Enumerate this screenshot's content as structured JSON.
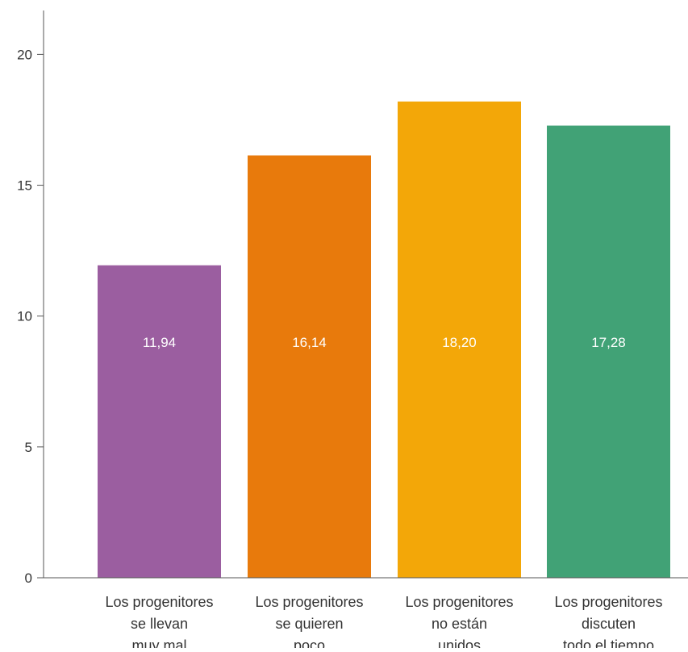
{
  "chart_data": {
    "type": "bar",
    "title": "",
    "xlabel": "",
    "ylabel": "",
    "ylim": [
      0,
      22
    ],
    "yticks": [
      0,
      5,
      10,
      15,
      20
    ],
    "grid": false,
    "legend": "none",
    "categories": [
      [
        "Los progenitores",
        "se llevan",
        "muy mal"
      ],
      [
        "Los progenitores",
        "se quieren",
        "poco"
      ],
      [
        "Los progenitores",
        "no están",
        "unidos"
      ],
      [
        "Los progenitores",
        "discuten",
        "todo el tiempo"
      ]
    ],
    "values": [
      11.94,
      16.14,
      18.2,
      17.28
    ],
    "value_labels": [
      "11,94",
      "16,14",
      "18,20",
      "17,28"
    ],
    "colors": [
      "#9b5ea0",
      "#e87a0c",
      "#f3a708",
      "#41a276"
    ],
    "axis_color": "#555555"
  }
}
